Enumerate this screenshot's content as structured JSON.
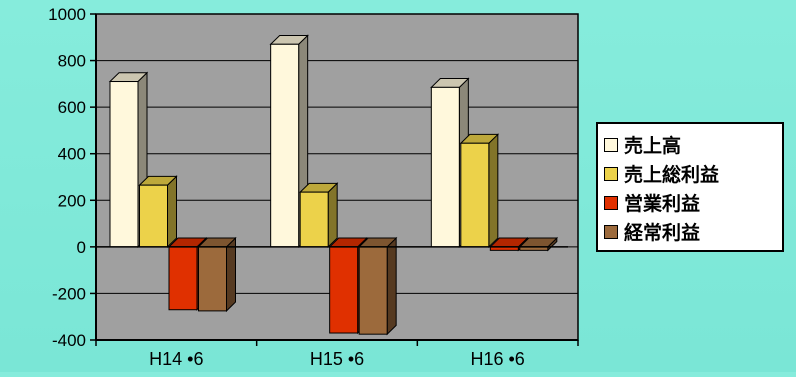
{
  "chart_data": {
    "type": "bar",
    "categories": [
      "H14 •6",
      "H15 •6",
      "H16 •6"
    ],
    "series": [
      {
        "name": "売上高",
        "values": [
          710,
          870,
          685
        ],
        "color": "#fff8dc"
      },
      {
        "name": "売上総利益",
        "values": [
          265,
          235,
          445
        ],
        "color": "#ecd24a"
      },
      {
        "name": "営業利益",
        "values": [
          -270,
          -370,
          -15
        ],
        "color": "#e03000"
      },
      {
        "name": "経常利益",
        "values": [
          -275,
          -375,
          -15
        ],
        "color": "#9c6a3c"
      }
    ],
    "ylim": [
      -400,
      1000
    ],
    "yticks": [
      -400,
      -200,
      0,
      200,
      400,
      600,
      800,
      1000
    ],
    "ytick_labels": [
      "-400",
      "-200",
      "0",
      "200",
      "400",
      "600",
      "800",
      "1000"
    ],
    "grid": true,
    "plot_background": "#a0a0a0",
    "legend_position": "right"
  }
}
